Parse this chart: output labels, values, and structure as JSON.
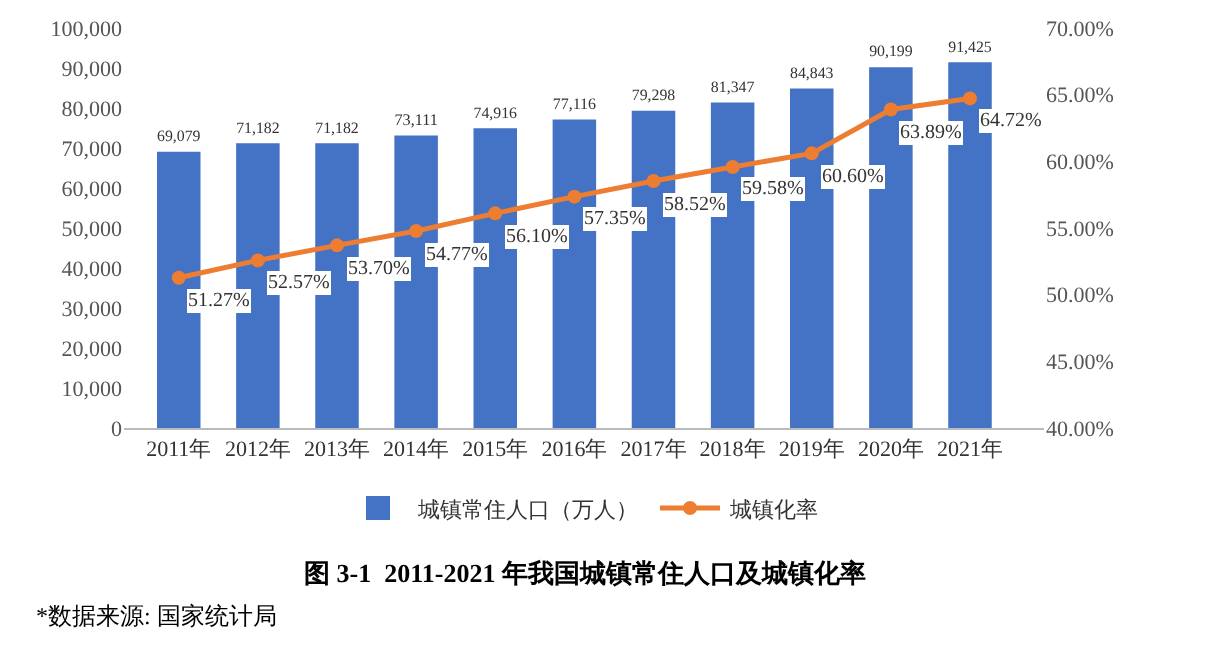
{
  "chart_data": {
    "type": "bar",
    "title": "图 3-1  2011-2021 年我国城镇常住人口及城镇化率",
    "categories": [
      "2011年",
      "2012年",
      "2013年",
      "2014年",
      "2015年",
      "2016年",
      "2017年",
      "2018年",
      "2019年",
      "2020年",
      "2021年"
    ],
    "series": [
      {
        "name": "城镇常住人口（万人）",
        "color": "#4472c4",
        "values": [
          69079,
          71182,
          71182,
          73111,
          74916,
          77116,
          79298,
          81347,
          84843,
          90199,
          91425
        ],
        "value_labels": [
          "69,079",
          "71,182",
          "71,182",
          "73,111",
          "74,916",
          "77,116",
          "79,298",
          "81,347",
          "84,843",
          "90,199",
          "91,425"
        ]
      },
      {
        "name": "城镇化率",
        "type": "line",
        "axis": "y2",
        "color": "#ed7d31",
        "marker": "circle",
        "values": [
          51.27,
          52.57,
          53.7,
          54.77,
          56.1,
          57.35,
          58.52,
          59.58,
          60.6,
          63.89,
          64.72
        ],
        "value_labels": [
          "51.27%",
          "52.57%",
          "53.70%",
          "54.77%",
          "56.10%",
          "57.35%",
          "58.52%",
          "59.58%",
          "60.60%",
          "63.89%",
          "64.72%"
        ]
      }
    ],
    "ylim": [
      0,
      100000
    ],
    "yticks": [
      0,
      {
        "value": 10000,
        "label": "10,000"
      },
      {
        "value": 20000,
        "label": "20,000"
      },
      {
        "value": 30000,
        "label": "30,000"
      },
      {
        "value": 40000,
        "label": "40,000"
      },
      {
        "value": 50000,
        "label": "50,000"
      },
      {
        "value": 60000,
        "label": "60,000"
      },
      {
        "value": 70000,
        "label": "70,000"
      },
      {
        "value": 80000,
        "label": "80,000"
      },
      {
        "value": 90000,
        "label": "90,000"
      },
      {
        "value": 100000,
        "label": "100,000"
      }
    ],
    "y2lim": [
      40,
      70
    ],
    "y2ticks": [
      {
        "value": 40,
        "label": "40.00%"
      },
      {
        "value": 45,
        "label": "45.00%"
      },
      {
        "value": 50,
        "label": "50.00%"
      },
      {
        "value": 55,
        "label": "55.00%"
      },
      {
        "value": 60,
        "label": "60.00%"
      },
      {
        "value": 65,
        "label": "65.00%"
      },
      {
        "value": 70,
        "label": "70.00%"
      }
    ],
    "grid": false,
    "legend": "bottom",
    "annotations": [
      "*数据来源: 国家统计局"
    ]
  }
}
